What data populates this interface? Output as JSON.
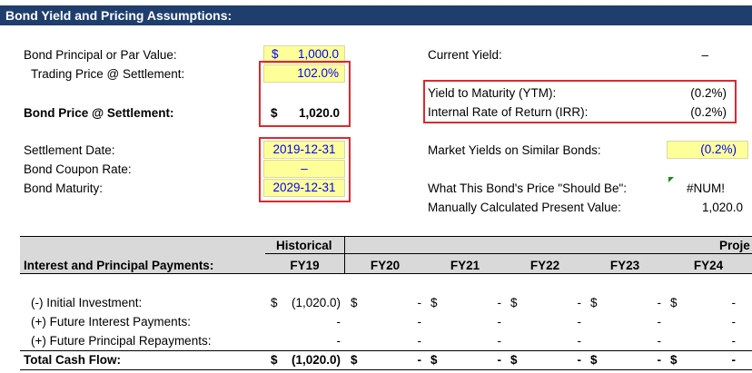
{
  "title": "Bond Yield and Pricing Assumptions:",
  "left": {
    "principal_label": "Bond Principal or Par Value:",
    "principal_currency": "$",
    "principal_value": "1,000.0",
    "trading_price_label": "Trading Price @ Settlement:",
    "trading_price_value": "102.0%",
    "bond_price_label": "Bond Price @ Settlement:",
    "bond_price_currency": "$",
    "bond_price_value": "1,020.0",
    "settlement_label": "Settlement Date:",
    "settlement_value": "2019-12-31",
    "coupon_label": "Bond Coupon Rate:",
    "coupon_value": "–",
    "maturity_label": "Bond Maturity:",
    "maturity_value": "2029-12-31"
  },
  "right": {
    "current_yield_label": "Current Yield:",
    "current_yield_value": "–",
    "ytm_label": "Yield to Maturity (YTM):",
    "ytm_value": "(0.2%)",
    "irr_label": "Internal Rate of Return (IRR):",
    "irr_value": "(0.2%)",
    "market_yields_label": "Market Yields on Similar Bonds:",
    "market_yields_value": "(0.2%)",
    "should_be_label": "What This Bond's Price \"Should Be\":",
    "should_be_value": "#NUM!",
    "pv_label": "Manually Calculated Present Value:",
    "pv_value": "1,020.0"
  },
  "table": {
    "historical_header": "Historical",
    "projected_header": "Proje",
    "section_label": "Interest and Principal Payments:",
    "years": [
      "FY19",
      "FY20",
      "FY21",
      "FY22",
      "FY23",
      "FY24"
    ],
    "rows": [
      {
        "label": "(-) Initial Investment:",
        "cells": [
          "$|(1,020.0)",
          "$|-",
          "$|-",
          "$|-",
          "$|-",
          "$|-"
        ]
      },
      {
        "label": "(+) Future Interest Payments:",
        "cells": [
          "|-",
          "|-",
          "|-",
          "|-",
          "|-",
          "|-"
        ]
      },
      {
        "label": "(+) Future Principal Repayments:",
        "cells": [
          "|-",
          "|-",
          "|-",
          "|-",
          "|-",
          "|-"
        ]
      }
    ],
    "total": {
      "label": "Total Cash Flow:",
      "cells": [
        "$|(1,020.0)",
        "$|-",
        "$|-",
        "$|-",
        "$|-",
        "$|-"
      ]
    }
  }
}
